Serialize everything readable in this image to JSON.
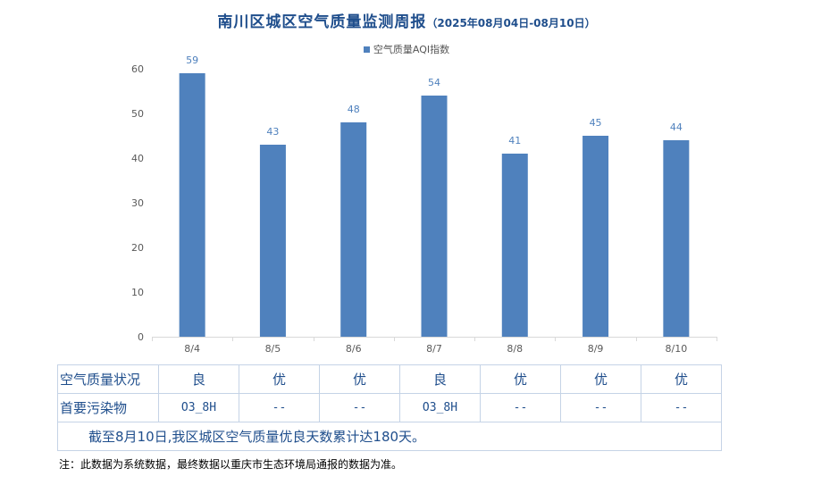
{
  "title": {
    "main": "南川区城区空气质量监测周报",
    "period": "（2025年08月04日-08月10日）"
  },
  "legend": {
    "label": "空气质量AQI指数"
  },
  "colors": {
    "bar": "#4f81bd",
    "title": "#1f4e8c",
    "axis_text": "#595959"
  },
  "chart_data": {
    "type": "bar",
    "categories": [
      "8/4",
      "8/5",
      "8/6",
      "8/7",
      "8/8",
      "8/9",
      "8/10"
    ],
    "series": [
      {
        "name": "空气质量AQI指数",
        "values": [
          59,
          43,
          48,
          54,
          41,
          45,
          44
        ]
      }
    ],
    "yticks": [
      0,
      10,
      20,
      30,
      40,
      50,
      60
    ],
    "ylim": [
      0,
      60
    ],
    "grid": false,
    "legend_position": "top"
  },
  "table": {
    "row1_header": "空气质量状况",
    "row1": [
      "良",
      "优",
      "优",
      "良",
      "优",
      "优",
      "优"
    ],
    "row2_header": "首要污染物",
    "row2": [
      "O3_8H",
      "--",
      "--",
      "O3_8H",
      "--",
      "--",
      "--"
    ],
    "summary": "截至8月10日,我区城区空气质量优良天数累计达180天。"
  },
  "footnote": "注：此数据为系统数据，最终数据以重庆市生态环境局通报的数据为准。"
}
